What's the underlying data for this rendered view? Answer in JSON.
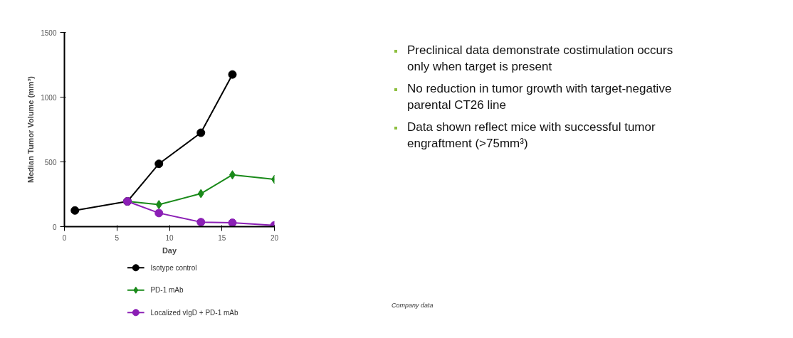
{
  "chart_data": {
    "type": "line",
    "xlabel": "Day",
    "ylabel": "Median Tumor Volume (mm³)",
    "xlim": [
      0,
      20
    ],
    "xticks": [
      0,
      5,
      10,
      15,
      20
    ],
    "ylim": [
      0,
      1500
    ],
    "yticks": [
      0,
      500,
      1000,
      1500
    ],
    "grid": false,
    "legend": "bottom",
    "series": [
      {
        "name": "Isotype control",
        "color": "#000000",
        "marker": "circle",
        "x": [
          1,
          6,
          9,
          13,
          16
        ],
        "values": [
          125,
          195,
          485,
          725,
          1175
        ]
      },
      {
        "name": "PD-1 mAb",
        "color": "#1a8a1a",
        "marker": "diamond",
        "x": [
          6,
          9,
          13,
          16,
          20
        ],
        "values": [
          195,
          170,
          255,
          400,
          365
        ]
      },
      {
        "name": "Localized vIgD + PD-1 mAb",
        "color": "#8b1fb5",
        "marker": "circle",
        "x": [
          6,
          9,
          13,
          16,
          20
        ],
        "values": [
          195,
          105,
          35,
          30,
          10
        ]
      }
    ],
    "annotations": [
      "Preclinical data demonstrate costimulation occurs only when target is present",
      "No reduction in tumor growth with target-negative parental CT26 line",
      "Data shown reflect mice with successful tumor engraftment (>75mm³)",
      "Company data"
    ]
  }
}
